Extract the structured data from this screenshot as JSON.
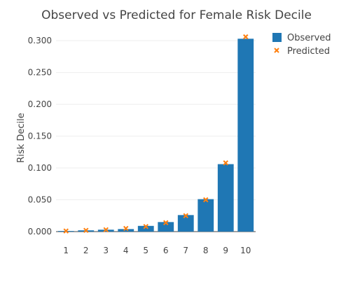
{
  "chart_data": {
    "type": "bar",
    "title": "Observed vs Predicted for Female Risk Decile",
    "xlabel": "",
    "ylabel": "Risk Decile",
    "categories": [
      "1",
      "2",
      "3",
      "4",
      "5",
      "6",
      "7",
      "8",
      "9",
      "10"
    ],
    "series": [
      {
        "name": "Observed",
        "type": "bar",
        "color": "#1f77b4",
        "values": [
          0.001,
          0.002,
          0.003,
          0.004,
          0.009,
          0.015,
          0.026,
          0.051,
          0.106,
          0.303
        ]
      },
      {
        "name": "Predicted",
        "type": "scatter",
        "marker": "x",
        "color": "#ff7f0e",
        "values": [
          0.001,
          0.002,
          0.003,
          0.005,
          0.008,
          0.014,
          0.025,
          0.05,
          0.108,
          0.306
        ]
      }
    ],
    "ylim": [
      0,
      0.31
    ],
    "yticks": [
      "0.000",
      "0.050",
      "0.100",
      "0.150",
      "0.200",
      "0.250",
      "0.300"
    ],
    "ytick_values": [
      0,
      0.05,
      0.1,
      0.15,
      0.2,
      0.25,
      0.3
    ],
    "grid": true,
    "legend_position": "top-right"
  }
}
